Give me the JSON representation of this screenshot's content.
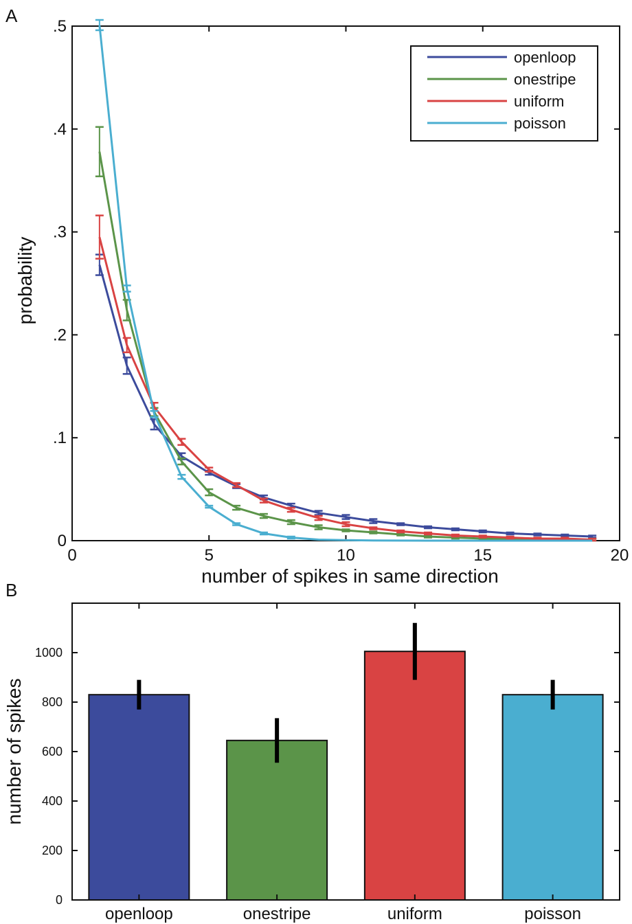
{
  "panel_labels": {
    "a": "A",
    "b": "B"
  },
  "colors": {
    "openloop": "#3c4b9c",
    "onestripe": "#5b9449",
    "uniform": "#d94343",
    "poisson": "#4aaed0",
    "axis": "#111111",
    "errorbar_b": "#000000"
  },
  "chart_data": [
    {
      "type": "line",
      "title": "",
      "xlabel": "number of spikes in same direction",
      "ylabel": "probability",
      "xlim": [
        0,
        20
      ],
      "ylim": [
        0,
        0.5
      ],
      "xticks": [
        0,
        5,
        10,
        15,
        20
      ],
      "xtick_labels": [
        "0",
        "5",
        "10",
        "15",
        "20"
      ],
      "yticks": [
        0,
        0.1,
        0.2,
        0.3,
        0.4,
        0.5
      ],
      "ytick_labels": [
        "0",
        ".1",
        ".2",
        ".3",
        ".4",
        ".5"
      ],
      "grid": false,
      "legend_position": "top-right",
      "x": [
        1,
        2,
        3,
        4,
        5,
        6,
        7,
        8,
        9,
        10,
        11,
        12,
        13,
        14,
        15,
        16,
        17,
        18,
        19
      ],
      "series": [
        {
          "name": "openloop",
          "color_key": "openloop",
          "values": [
            0.268,
            0.17,
            0.113,
            0.082,
            0.066,
            0.053,
            0.042,
            0.034,
            0.027,
            0.023,
            0.019,
            0.016,
            0.013,
            0.011,
            0.009,
            0.007,
            0.006,
            0.005,
            0.004
          ],
          "errors": [
            0.01,
            0.008,
            0.005,
            0.003,
            0.002,
            0.002,
            0.002,
            0.002,
            0.002,
            0.002,
            0.002,
            0.001,
            0.001,
            0.001,
            0.001,
            0.001,
            0.001,
            0.001,
            0.001
          ]
        },
        {
          "name": "onestripe",
          "color_key": "onestripe",
          "values": [
            0.378,
            0.224,
            0.125,
            0.077,
            0.047,
            0.032,
            0.024,
            0.018,
            0.013,
            0.01,
            0.008,
            0.006,
            0.004,
            0.003,
            0.002,
            0.002,
            0.001,
            0.001,
            0.001
          ],
          "errors": [
            0.024,
            0.01,
            0.004,
            0.003,
            0.003,
            0.002,
            0.002,
            0.002,
            0.002,
            0.001,
            0.001,
            0.001,
            0.001,
            0.001,
            0.001,
            0.001,
            0.001,
            0.001,
            0.001
          ]
        },
        {
          "name": "uniform",
          "color_key": "uniform",
          "values": [
            0.295,
            0.19,
            0.13,
            0.096,
            0.069,
            0.054,
            0.039,
            0.03,
            0.022,
            0.016,
            0.012,
            0.009,
            0.007,
            0.005,
            0.004,
            0.003,
            0.002,
            0.002,
            0.001
          ],
          "errors": [
            0.021,
            0.007,
            0.004,
            0.003,
            0.002,
            0.002,
            0.002,
            0.002,
            0.002,
            0.002,
            0.001,
            0.001,
            0.001,
            0.001,
            0.001,
            0.001,
            0.001,
            0.001,
            0.001
          ]
        },
        {
          "name": "poisson",
          "color_key": "poisson",
          "values": [
            0.501,
            0.245,
            0.123,
            0.062,
            0.033,
            0.016,
            0.007,
            0.003,
            0.001,
            0.0005,
            0.0002,
            0.0001,
            0,
            0,
            0,
            0,
            0,
            0,
            0
          ],
          "errors": [
            0.005,
            0.003,
            0.003,
            0.002,
            0.001,
            0.001,
            0.001,
            0.001,
            0,
            0,
            0,
            0,
            0,
            0,
            0,
            0,
            0,
            0,
            0
          ]
        }
      ]
    },
    {
      "type": "bar",
      "title": "",
      "xlabel": "",
      "ylabel": "number of spikes",
      "ylim": [
        0,
        1200
      ],
      "yticks": [
        0,
        200,
        400,
        600,
        800,
        1000
      ],
      "ytick_labels": [
        "0",
        "200",
        "400",
        "600",
        "800",
        "1000"
      ],
      "grid": false,
      "categories": [
        "openloop",
        "onestripe",
        "uniform",
        "poisson"
      ],
      "values": [
        830,
        645,
        1005,
        830
      ],
      "errors": [
        60,
        90,
        115,
        60
      ],
      "color_keys": [
        "openloop",
        "onestripe",
        "uniform",
        "poisson"
      ]
    }
  ]
}
